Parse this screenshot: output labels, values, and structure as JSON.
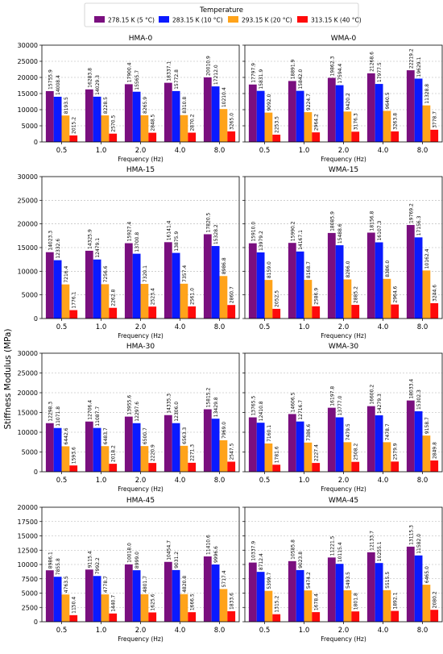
{
  "figure": {
    "legend_title": "Temperature",
    "ylabel": "Stiffness Modulus (MPa)"
  },
  "colors": [
    "#7a0f7f",
    "#0a1aff",
    "#ffa31a",
    "#ff0a0a"
  ],
  "chart_data": [
    {
      "type": "bar",
      "title": "HMA-0",
      "xlabel": "Frequency (Hz)",
      "categories": [
        "0.5",
        "1.0",
        "2.0",
        "4.0",
        "8.0"
      ],
      "ylim": [
        0,
        30000
      ],
      "yticks": [
        "0",
        "5000",
        "10000",
        "15000",
        "20000",
        "25000",
        "30000"
      ],
      "grid": "y-dashed",
      "legend_position": "top-center",
      "series": [
        {
          "name": "278.15 K (5 °C)",
          "values": [
            15755.9,
            16283.8,
            17900.4,
            18337.1,
            20010.9
          ],
          "labels": [
            "15755.9",
            "16283.8",
            "17900.4",
            "18337.1",
            "20010.9"
          ]
        },
        {
          "name": "283.15 K (10 °C)",
          "values": [
            14008.4,
            14029.3,
            15565.7,
            15772.8,
            17212.0
          ],
          "labels": [
            "14008.4",
            "14029.3",
            "15565.7",
            "15772.8",
            "17212.0"
          ]
        },
        {
          "name": "293.15 K (20 °C)",
          "values": [
            8193.5,
            8228.5,
            8265.9,
            8310.8,
            10210.4
          ],
          "labels": [
            "8193.5",
            "8228.5",
            "8265.9",
            "8310.8",
            "10210.4"
          ]
        },
        {
          "name": "313.15 K (40 °C)",
          "values": [
            2015.2,
            2570.5,
            2848.5,
            2870.2,
            3265.0
          ],
          "labels": [
            "2015.2",
            "2570.5",
            "2848.5",
            "2870.2",
            "3265.0"
          ]
        }
      ]
    },
    {
      "type": "bar",
      "title": "WMA-0",
      "xlabel": "Frequency (Hz)",
      "categories": [
        "0.5",
        "1.0",
        "2.0",
        "4.0",
        "8.0"
      ],
      "ylim": [
        0,
        30000
      ],
      "yticks": [
        "0",
        "5000",
        "10000",
        "15000",
        "20000",
        "25000",
        "30000"
      ],
      "grid": "y-dashed",
      "series": [
        {
          "name": "278.15 K (5 °C)",
          "values": [
            17797.9,
            18891.9,
            19862.3,
            21268.6,
            22219.2
          ],
          "labels": [
            "17797.9",
            "18891.9",
            "19862.3",
            "21268.6",
            "22219.2"
          ]
        },
        {
          "name": "283.15 K (10 °C)",
          "values": [
            15831.9,
            15842.0,
            17594.4,
            17977.5,
            19629.1
          ],
          "labels": [
            "15831.9",
            "15842.0",
            "17594.4",
            "17977.5",
            "19629.1"
          ]
        },
        {
          "name": "293.15 K (20 °C)",
          "values": [
            9092.0,
            9224.7,
            9420.2,
            9640.5,
            11328.8
          ],
          "labels": [
            "9092.0",
            "9224.7",
            "9420.2",
            "9640.5",
            "11328.8"
          ]
        },
        {
          "name": "313.15 K (40 °C)",
          "values": [
            2253.5,
            2964.2,
            3176.3,
            3263.8,
            3778.7
          ],
          "labels": [
            "2253.5",
            "2964.2",
            "3176.3",
            "3263.8",
            "3778.7"
          ]
        }
      ]
    },
    {
      "type": "bar",
      "title": "HMA-15",
      "xlabel": "Frequency (Hz)",
      "categories": [
        "0.5",
        "1.0",
        "2.0",
        "4.0",
        "8.0"
      ],
      "ylim": [
        0,
        30000
      ],
      "yticks": [
        "0",
        "5000",
        "10000",
        "15000",
        "20000",
        "25000",
        "30000"
      ],
      "grid": "y-dashed",
      "series": [
        {
          "name": "278.15 K (5 °C)",
          "values": [
            14023.3,
            14325.9,
            15927.4,
            16141.4,
            17820.5
          ],
          "labels": [
            "14023.3",
            "14325.9",
            "15927.4",
            "16141.4",
            "17820.5"
          ]
        },
        {
          "name": "283.15 K (10 °C)",
          "values": [
            12332.6,
            12479.1,
            13700.8,
            13875.9,
            15328.2
          ],
          "labels": [
            "12332.6",
            "12479.1",
            "13700.8",
            "13875.9",
            "15328.2"
          ]
        },
        {
          "name": "293.15 K (20 °C)",
          "values": [
            7216.4,
            7256.6,
            7320.1,
            7357.4,
            8986.8
          ],
          "labels": [
            "7216.4",
            "7256.6",
            "7320.1",
            "7357.4",
            "8986.8"
          ]
        },
        {
          "name": "313.15 K (40 °C)",
          "values": [
            1776.1,
            2262.8,
            2523.4,
            2561.0,
            2860.7
          ],
          "labels": [
            "1776.1",
            "2262.8",
            "2523.4",
            "2561.0",
            "2860.7"
          ]
        }
      ]
    },
    {
      "type": "bar",
      "title": "WMA-15",
      "xlabel": "Frequency (Hz)",
      "categories": [
        "0.5",
        "1.0",
        "2.0",
        "4.0",
        "8.0"
      ],
      "ylim": [
        0,
        30000
      ],
      "yticks": [
        "0",
        "5000",
        "10000",
        "15000",
        "20000",
        "25000",
        "30000"
      ],
      "grid": "y-dashed",
      "series": [
        {
          "name": "278.15 K (5 °C)",
          "values": [
            15910.0,
            15990.2,
            18085.9,
            18156.8,
            19769.2
          ],
          "labels": [
            "15910.0",
            "15990.2",
            "18085.9",
            "18156.8",
            "19769.2"
          ]
        },
        {
          "name": "283.15 K (10 °C)",
          "values": [
            13979.2,
            14167.1,
            15488.6,
            16107.3,
            17156.3
          ],
          "labels": [
            "13979.2",
            "14167.1",
            "15488.6",
            "16107.3",
            "17156.3"
          ]
        },
        {
          "name": "293.15 K (20 °C)",
          "values": [
            8159.0,
            8168.7,
            8266.0,
            8386.0,
            10162.4
          ],
          "labels": [
            "8159.0",
            "8168.7",
            "8266.0",
            "8386.0",
            "10162.4"
          ]
        },
        {
          "name": "313.15 K (40 °C)",
          "values": [
            2052.5,
            2586.9,
            2885.2,
            2964.6,
            3244.6
          ],
          "labels": [
            "2052.5",
            "2586.9",
            "2885.2",
            "2964.6",
            "3244.6"
          ]
        }
      ]
    },
    {
      "type": "bar",
      "title": "HMA-30",
      "xlabel": "Frequency (Hz)",
      "categories": [
        "0.5",
        "1.0",
        "2.0",
        "4.0",
        "8.0"
      ],
      "ylim": [
        0,
        30000
      ],
      "yticks": [
        "0",
        "5000",
        "10000",
        "15000",
        "20000",
        "25000",
        "30000"
      ],
      "grid": "y-dashed",
      "series": [
        {
          "name": "278.15 K (5 °C)",
          "values": [
            12298.3,
            12706.4,
            13955.6,
            14335.3,
            15815.2
          ],
          "labels": [
            "12298.3",
            "12706.4",
            "13955.6",
            "14335.3",
            "15815.2"
          ]
        },
        {
          "name": "283.15 K (10 °C)",
          "values": [
            11071.8,
            11087.7,
            12297.6,
            12306.0,
            13429.8
          ],
          "labels": [
            "11071.8",
            "11087.7",
            "12297.6",
            "12306.0",
            "13429.8"
          ]
        },
        {
          "name": "293.15 K (20 °C)",
          "values": [
            6442.6,
            6483.7,
            6500.7,
            6563.3,
            7969.0
          ],
          "labels": [
            "6442.6",
            "6483.7",
            "6500.7",
            "6563.3",
            "7969.0"
          ]
        },
        {
          "name": "313.15 K (40 °C)",
          "values": [
            1593.6,
            2018.2,
            2220.9,
            2271.3,
            2547.5
          ],
          "labels": [
            "1593.6",
            "2018.2",
            "2220.9",
            "2271.3",
            "2547.5"
          ]
        }
      ]
    },
    {
      "type": "bar",
      "title": "WMA-30",
      "xlabel": "Frequency (Hz)",
      "categories": [
        "0.5",
        "1.0",
        "2.0",
        "4.0",
        "8.0"
      ],
      "ylim": [
        0,
        30000
      ],
      "yticks": [
        "0",
        "5000",
        "10000",
        "15000",
        "20000",
        "25000",
        "30000"
      ],
      "grid": "y-dashed",
      "series": [
        {
          "name": "278.15 K (5 °C)",
          "values": [
            13765.5,
            14606.5,
            16197.8,
            16600.2,
            18033.4
          ],
          "labels": [
            "13765.5",
            "14606.5",
            "16197.8",
            "16600.2",
            "18033.4"
          ]
        },
        {
          "name": "283.15 K (10 °C)",
          "values": [
            12410.8,
            12716.7,
            13777.0,
            14279.3,
            15302.3
          ],
          "labels": [
            "12410.8",
            "12716.7",
            "13777.0",
            "14279.3",
            "15302.3"
          ]
        },
        {
          "name": "293.15 K (20 °C)",
          "values": [
            7160.1,
            7386.6,
            7479.5,
            7478.7,
            9158.7
          ],
          "labels": [
            "7160.1",
            "7386.6",
            "7479.5",
            "7478.7",
            "9158.7"
          ]
        },
        {
          "name": "313.15 K (40 °C)",
          "values": [
            1781.6,
            2227.4,
            2508.2,
            2579.9,
            2849.8
          ],
          "labels": [
            "1781.6",
            "2227.4",
            "2508.2",
            "2579.9",
            "2849.8"
          ]
        }
      ]
    },
    {
      "type": "bar",
      "title": "HMA-45",
      "xlabel": "Frequency (Hz)",
      "categories": [
        "0.5",
        "1.0",
        "2.0",
        "4.0",
        "8.0"
      ],
      "ylim": [
        0,
        20000
      ],
      "yticks": [
        "0",
        "2500",
        "5000",
        "7500",
        "10000",
        "12500",
        "15000",
        "17500",
        "20000"
      ],
      "grid": "y-dashed",
      "series": [
        {
          "name": "278.15 K (5 °C)",
          "values": [
            8986.1,
            9115.4,
            10018.0,
            10454.7,
            11410.6
          ],
          "labels": [
            "8986.1",
            "9115.4",
            "10018.0",
            "10454.7",
            "11410.6"
          ]
        },
        {
          "name": "283.15 K (10 °C)",
          "values": [
            7855.8,
            7992.2,
            8999.0,
            9031.2,
            9996.6
          ],
          "labels": [
            "7855.8",
            "7992.2",
            "8999.0",
            "9031.2",
            "9996.6"
          ]
        },
        {
          "name": "293.15 K (20 °C)",
          "values": [
            4763.5,
            4778.7,
            4801.7,
            4820.8,
            5717.4
          ],
          "labels": [
            "4763.5",
            "4778.7",
            "4801.7",
            "4820.8",
            "5717.4"
          ]
        },
        {
          "name": "313.15 K (40 °C)",
          "values": [
            1150.4,
            1440.7,
            1625.6,
            1666.5,
            1833.6
          ],
          "labels": [
            "1150.4",
            "1440.7",
            "1625.6",
            "1666.5",
            "1833.6"
          ]
        }
      ]
    },
    {
      "type": "bar",
      "title": "WMA-45",
      "xlabel": "Frequency (Hz)",
      "categories": [
        "0.5",
        "1.0",
        "2.0",
        "4.0",
        "8.0"
      ],
      "ylim": [
        0,
        20000
      ],
      "yticks": [
        "0",
        "2500",
        "5000",
        "7500",
        "10000",
        "12500",
        "15000",
        "17500",
        "20000"
      ],
      "grid": "y-dashed",
      "series": [
        {
          "name": "278.15 K (5 °C)",
          "values": [
            10337.9,
            10585.8,
            11221.5,
            12133.7,
            13115.3
          ],
          "labels": [
            "10337.9",
            "10585.8",
            "11221.5",
            "12133.7",
            "13115.3"
          ]
        },
        {
          "name": "283.15 K (10 °C)",
          "values": [
            8712.4,
            9023.8,
            10115.4,
            10255.1,
            11582.0
          ],
          "labels": [
            "8712.4",
            "9023.8",
            "10115.4",
            "10255.1",
            "11582.0"
          ]
        },
        {
          "name": "293.15 K (20 °C)",
          "values": [
            5399.7,
            5474.2,
            5493.5,
            5515.5,
            6465.0
          ],
          "labels": [
            "5399.7",
            "5474.2",
            "5493.5",
            "5515.5",
            "6465.0"
          ]
        },
        {
          "name": "313.15 K (40 °C)",
          "values": [
            1315.2,
            1678.4,
            1801.8,
            1892.1,
            2080.2
          ],
          "labels": [
            "1315.2",
            "1678.4",
            "1801.8",
            "1892.1",
            "2080.2"
          ]
        }
      ]
    }
  ]
}
